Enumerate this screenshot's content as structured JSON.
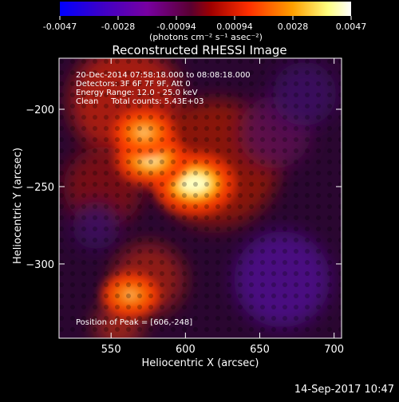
{
  "chart_data": {
    "type": "heatmap",
    "title": "Reconstructed RHESSI Image",
    "xlabel": "Heliocentric X (arcsec)",
    "ylabel": "Heliocentric Y (arcsec)",
    "xlim": [
      515,
      705
    ],
    "ylim": [
      -348,
      -167
    ],
    "xticks": [
      550,
      600,
      650,
      700
    ],
    "yticks": [
      -200,
      -250,
      -300
    ],
    "colorbar": {
      "ticks": [
        "-0.0047",
        "-0.0028",
        "-0.00094",
        "0.00094",
        "0.0028",
        "0.0047"
      ],
      "range": [
        -0.0047,
        0.0047
      ],
      "unit_label": "(photons cm⁻² s⁻¹ asec⁻²)",
      "colors": [
        "#0000ff",
        "#4b00b4",
        "#7a00a0",
        "#b40000",
        "#ff4800",
        "#ffb400",
        "#ffff96",
        "#ffffff"
      ]
    },
    "info_lines": [
      "20-Dec-2014 07:58:18.000 to 08:08:18.000",
      "Detectors: 3F 6F 7F 9F, Att 0",
      "Energy Range: 12.0 - 25.0 keV",
      "Clean     Total counts: 5.43E+03"
    ],
    "peak_label": "Position of Peak = [606,-248]",
    "sources": [
      {
        "x": 606,
        "y": -248,
        "value": 0.0047
      },
      {
        "x": 577,
        "y": -232,
        "value": 0.0036
      },
      {
        "x": 572,
        "y": -215,
        "value": 0.0026
      },
      {
        "x": 563,
        "y": -320,
        "value": 0.0022
      }
    ]
  },
  "timestamp": "14-Sep-2017 10:47"
}
